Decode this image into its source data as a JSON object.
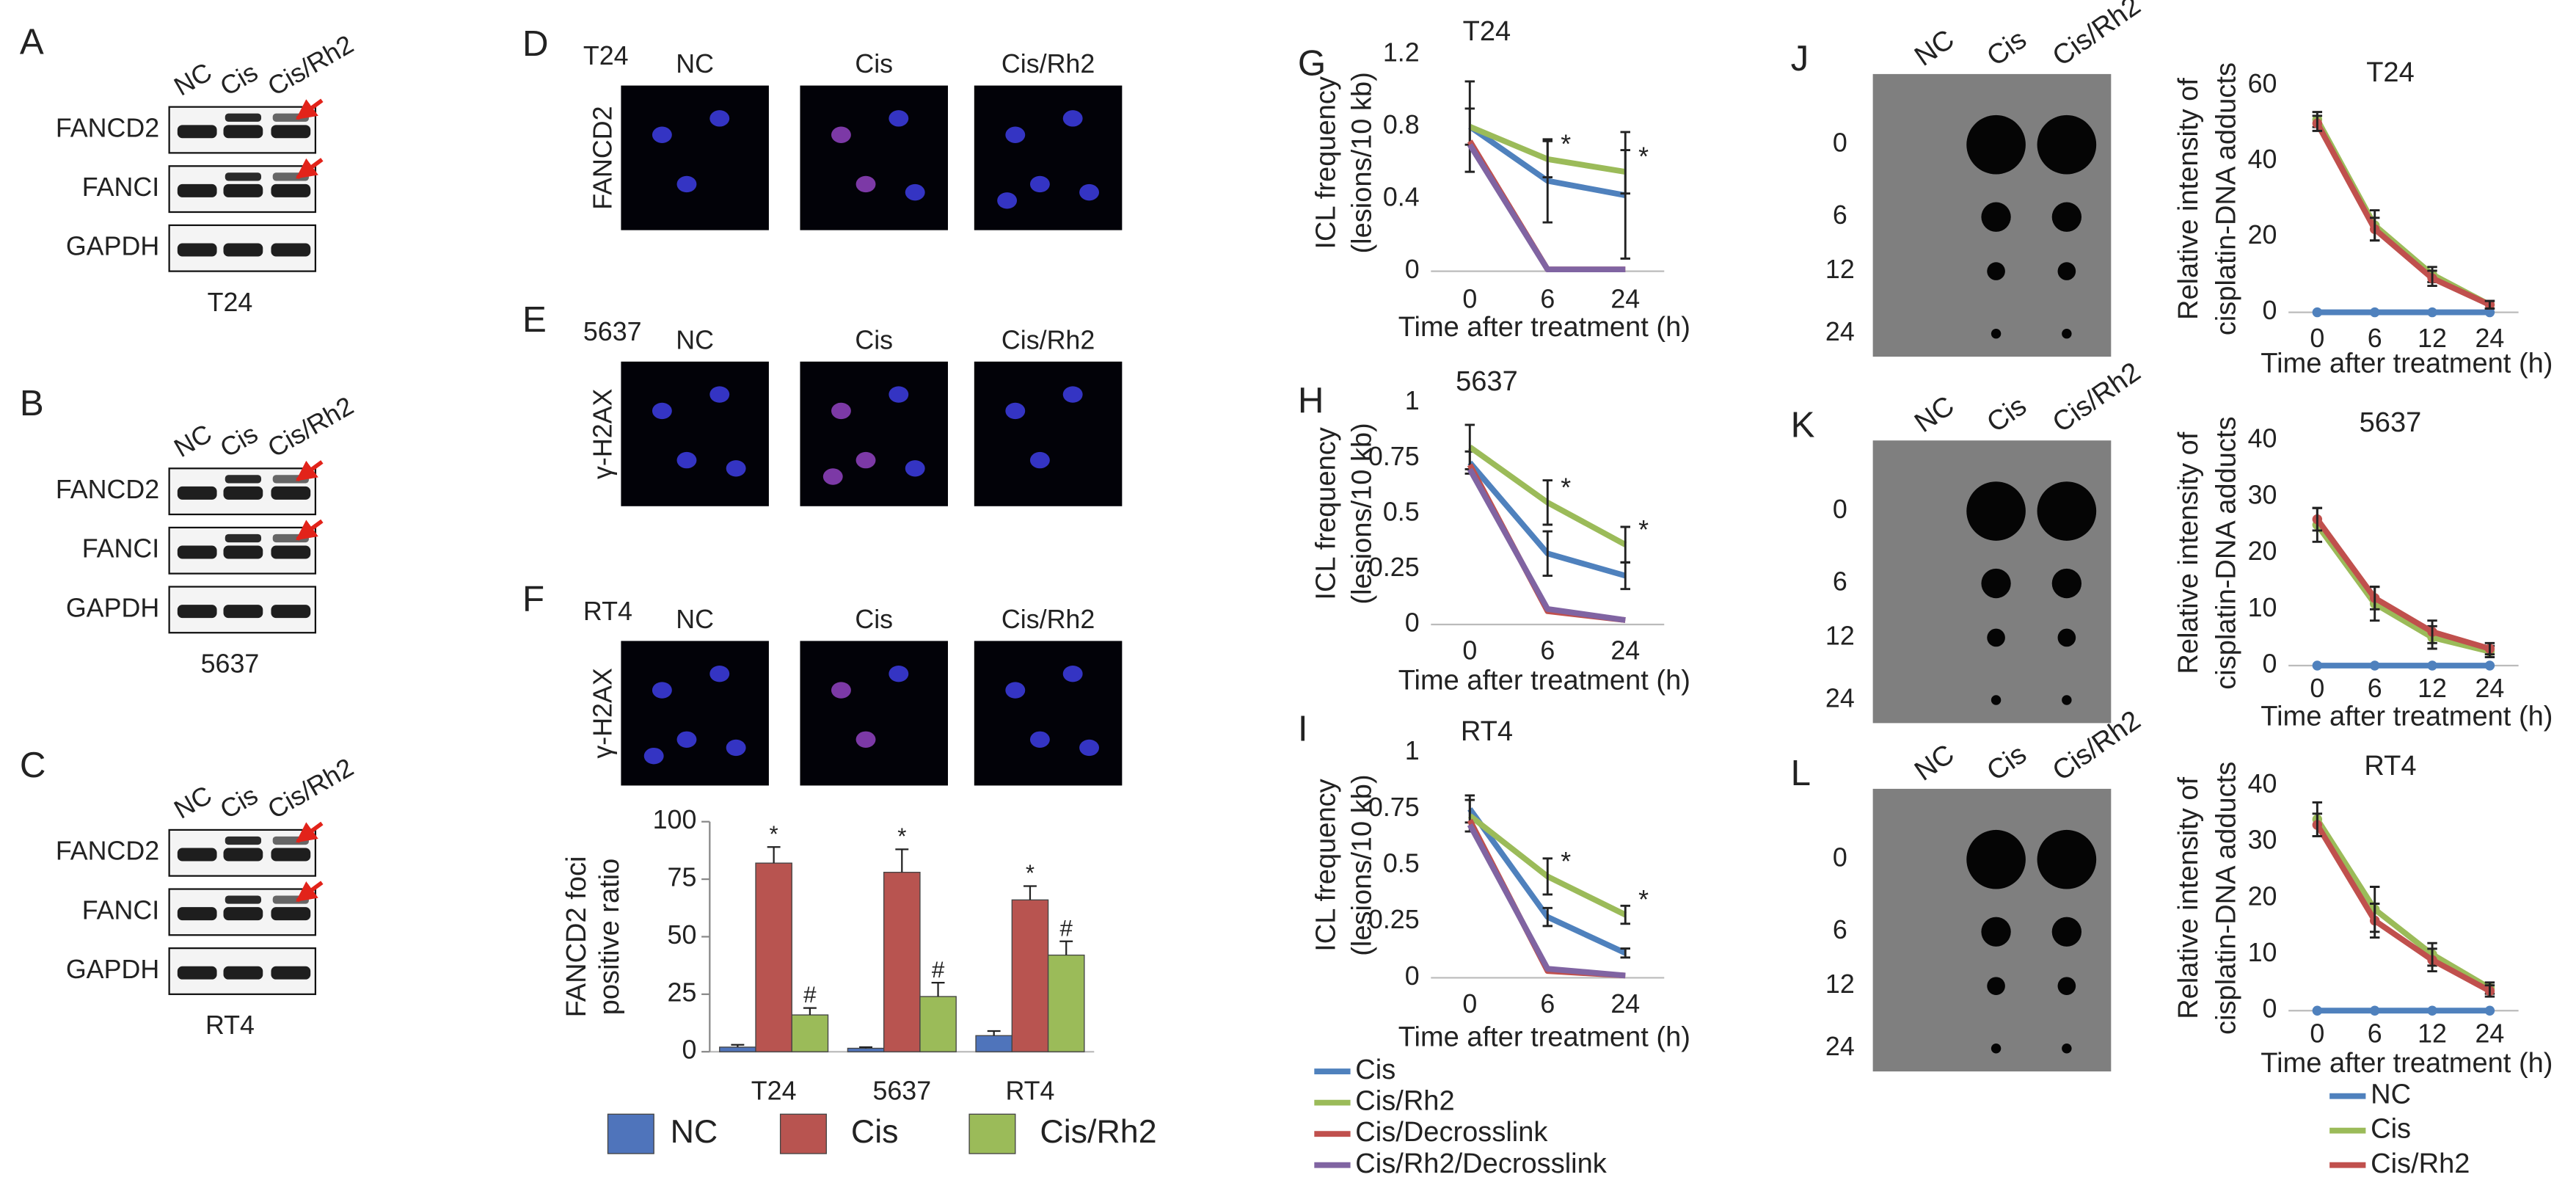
{
  "blots": [
    {
      "label": "A",
      "lanes": [
        "NC",
        "Cis",
        "Cis/Rh2"
      ],
      "rows": [
        "FANCD2",
        "FANCI",
        "GAPDH"
      ],
      "cell_line": "T24"
    },
    {
      "label": "B",
      "lanes": [
        "NC",
        "Cis",
        "Cis/Rh2"
      ],
      "rows": [
        "FANCD2",
        "FANCI",
        "GAPDH"
      ],
      "cell_line": "5637"
    },
    {
      "label": "C",
      "lanes": [
        "NC",
        "Cis",
        "Cis/Rh2"
      ],
      "rows": [
        "FANCD2",
        "FANCI",
        "GAPDH"
      ],
      "cell_line": "RT4"
    }
  ],
  "micrographs": [
    {
      "label": "D",
      "cell_line": "T24",
      "stain": "FANCD2",
      "columns": [
        "NC",
        "Cis",
        "Cis/Rh2"
      ]
    },
    {
      "label": "E",
      "cell_line": "5637",
      "stain": "γ-H2AX",
      "columns": [
        "NC",
        "Cis",
        "Cis/Rh2"
      ]
    },
    {
      "label": "F",
      "cell_line": "RT4",
      "stain": "γ-H2AX",
      "columns": [
        "NC",
        "Cis",
        "Cis/Rh2"
      ]
    }
  ],
  "dot_blots": [
    {
      "label": "J",
      "lanes": [
        "NC",
        "Cis",
        "Cis/Rh2"
      ],
      "rows": [
        "0",
        "6",
        "12",
        "24"
      ]
    },
    {
      "label": "K",
      "lanes": [
        "NC",
        "Cis",
        "Cis/Rh2"
      ],
      "rows": [
        "0",
        "6",
        "12",
        "24"
      ]
    },
    {
      "label": "L",
      "lanes": [
        "NC",
        "Cis",
        "Cis/Rh2"
      ],
      "rows": [
        "0",
        "6",
        "12",
        "24"
      ]
    }
  ],
  "chart_data": [
    {
      "type": "bar",
      "ylabel": [
        "FANCD2 foci",
        "positive ratio"
      ],
      "categories": [
        "T24",
        "5637",
        "RT4"
      ],
      "ylim": [
        0,
        100
      ],
      "yticks": [
        0,
        25,
        50,
        75,
        100
      ],
      "legend": "bottom",
      "series": [
        {
          "name": "NC",
          "color": "#4f74bb",
          "values": [
            2,
            1.5,
            7
          ],
          "errors": [
            1,
            0.5,
            2
          ]
        },
        {
          "name": "Cis",
          "color": "#b85450",
          "values": [
            82,
            78,
            66
          ],
          "errors": [
            7,
            10,
            6
          ],
          "significance": [
            "*",
            "*",
            "*"
          ]
        },
        {
          "name": "Cis/Rh2",
          "color": "#9bbb59",
          "values": [
            16,
            24,
            42
          ],
          "errors": [
            3,
            6,
            6
          ],
          "significance": [
            "#",
            "#",
            "#"
          ]
        }
      ]
    },
    {
      "type": "line",
      "panel": "G",
      "title": "T24",
      "ylabel": [
        "ICL frequency",
        "(lesions/10 kb)"
      ],
      "xlabel": "Time after treatment (h)",
      "categories": [
        "0",
        "6",
        "24"
      ],
      "ylim": [
        0,
        1.2
      ],
      "yticks": [
        0,
        0.4,
        0.8,
        1.2
      ],
      "series": [
        {
          "color": "#4f81bd",
          "values": [
            0.8,
            0.5,
            0.42
          ],
          "errors": [
            0.25,
            0.23,
            0.35
          ]
        },
        {
          "color": "#9bbb59",
          "values": [
            0.8,
            0.62,
            0.55
          ],
          "errors": [
            0.1,
            0.1,
            0.12
          ],
          "significance": [
            null,
            "*",
            "*"
          ]
        },
        {
          "color": "#c0504d",
          "values": [
            0.72,
            0.01,
            0.01
          ]
        },
        {
          "color": "#8064a2",
          "values": [
            0.7,
            0.01,
            0.01
          ]
        }
      ]
    },
    {
      "type": "line",
      "panel": "H",
      "title": "5637",
      "ylabel": [
        "ICL frequency",
        "(lesions/10 kb)"
      ],
      "xlabel": "Time after treatment (h)",
      "categories": [
        "0",
        "6",
        "24"
      ],
      "ylim": [
        0,
        1
      ],
      "yticks": [
        0,
        0.25,
        0.5,
        0.75,
        1
      ],
      "series": [
        {
          "color": "#4f81bd",
          "values": [
            0.73,
            0.32,
            0.22
          ],
          "errors": [
            0.05,
            0.1,
            0.06
          ]
        },
        {
          "color": "#9bbb59",
          "values": [
            0.8,
            0.55,
            0.36
          ],
          "errors": [
            0.1,
            0.1,
            0.08
          ],
          "significance": [
            null,
            "*",
            "*"
          ]
        },
        {
          "color": "#c0504d",
          "values": [
            0.72,
            0.06,
            0.02
          ]
        },
        {
          "color": "#8064a2",
          "values": [
            0.7,
            0.07,
            0.02
          ]
        }
      ]
    },
    {
      "type": "line",
      "panel": "I",
      "title": "RT4",
      "ylabel": [
        "ICL frequency",
        "(lesions/10 kb)"
      ],
      "xlabel": "Time after treatment (h)",
      "categories": [
        "0",
        "6",
        "24"
      ],
      "ylim": [
        0,
        1
      ],
      "yticks": [
        0,
        0.25,
        0.5,
        0.75,
        1
      ],
      "legend": "bottom",
      "series": [
        {
          "name": "Cis",
          "color": "#4f81bd",
          "values": [
            0.75,
            0.27,
            0.11
          ],
          "errors": [
            0.06,
            0.04,
            0.02
          ]
        },
        {
          "name": "Cis/Rh2",
          "color": "#9bbb59",
          "values": [
            0.72,
            0.45,
            0.28
          ],
          "errors": [
            0.07,
            0.08,
            0.04
          ],
          "significance": [
            null,
            "*",
            "*"
          ]
        },
        {
          "name": "Cis/Decrosslink",
          "color": "#c0504d",
          "values": [
            0.7,
            0.03,
            0.01
          ]
        },
        {
          "name": "Cis/Rh2/Decrosslink",
          "color": "#8064a2",
          "values": [
            0.68,
            0.04,
            0.01
          ]
        }
      ]
    },
    {
      "type": "line",
      "title": "T24",
      "ylabel": [
        "Relative intensity of",
        "cisplatin-DNA adducts"
      ],
      "xlabel": "Time after treatment (h)",
      "categories": [
        "0",
        "6",
        "12",
        "24"
      ],
      "ylim": [
        0,
        60
      ],
      "yticks": [
        0,
        20,
        40,
        60
      ],
      "markers": true,
      "series": [
        {
          "color": "#4f81bd",
          "values": [
            0,
            0,
            0,
            0
          ]
        },
        {
          "color": "#9bbb59",
          "values": [
            51,
            23,
            10,
            2
          ],
          "errors": [
            2,
            4,
            2,
            1
          ]
        },
        {
          "color": "#c0504d",
          "values": [
            50,
            22,
            9,
            2
          ],
          "errors": [
            2,
            3,
            2,
            1
          ]
        }
      ]
    },
    {
      "type": "line",
      "title": "5637",
      "ylabel": [
        "Relative intensity of",
        "cisplatin-DNA adducts"
      ],
      "xlabel": "Time after treatment (h)",
      "categories": [
        "0",
        "6",
        "12",
        "24"
      ],
      "ylim": [
        0,
        40
      ],
      "yticks": [
        0,
        10,
        20,
        30,
        40
      ],
      "markers": true,
      "series": [
        {
          "color": "#4f81bd",
          "values": [
            0,
            0,
            0,
            0
          ]
        },
        {
          "color": "#9bbb59",
          "values": [
            25,
            11,
            5,
            2.5
          ],
          "errors": [
            3,
            3,
            2,
            1
          ]
        },
        {
          "color": "#c0504d",
          "values": [
            26,
            12,
            6,
            3
          ],
          "errors": [
            2,
            2,
            2,
            1
          ]
        }
      ]
    },
    {
      "type": "line",
      "title": "RT4",
      "ylabel": [
        "Relative intensity of",
        "cisplatin-DNA adducts"
      ],
      "xlabel": "Time after treatment (h)",
      "categories": [
        "0",
        "6",
        "12",
        "24"
      ],
      "ylim": [
        0,
        40
      ],
      "yticks": [
        0,
        10,
        20,
        30,
        40
      ],
      "markers": true,
      "legend": "bottom",
      "series": [
        {
          "name": "NC",
          "color": "#4f81bd",
          "values": [
            0,
            0,
            0,
            0
          ]
        },
        {
          "name": "Cis",
          "color": "#9bbb59",
          "values": [
            34,
            18,
            10,
            4
          ],
          "errors": [
            3,
            4,
            2,
            1
          ]
        },
        {
          "name": "Cis/Rh2",
          "color": "#c0504d",
          "values": [
            33,
            16,
            9,
            3.5
          ],
          "errors": [
            2,
            3,
            2,
            1
          ]
        }
      ]
    }
  ]
}
